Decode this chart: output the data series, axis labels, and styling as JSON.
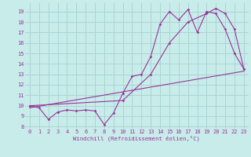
{
  "xlabel": "Windchill (Refroidissement éolien,°C)",
  "bg_color": "#c8ecea",
  "grid_color": "#aad4d2",
  "line_color": "#993399",
  "xlim": [
    -0.5,
    23.5
  ],
  "ylim": [
    7.8,
    19.8
  ],
  "xticks": [
    0,
    1,
    2,
    3,
    4,
    5,
    6,
    7,
    8,
    9,
    10,
    11,
    12,
    13,
    14,
    15,
    16,
    17,
    18,
    19,
    20,
    21,
    22,
    23
  ],
  "yticks": [
    8,
    9,
    10,
    11,
    12,
    13,
    14,
    15,
    16,
    17,
    18,
    19
  ],
  "line1_x": [
    0,
    1,
    2,
    3,
    4,
    5,
    6,
    7,
    8,
    9,
    10,
    11,
    12,
    13,
    14,
    15,
    16,
    17,
    18,
    19,
    20,
    21,
    22,
    23
  ],
  "line1_y": [
    10.0,
    9.8,
    8.7,
    9.4,
    9.6,
    9.5,
    9.6,
    9.5,
    8.2,
    9.3,
    11.2,
    12.8,
    13.0,
    14.7,
    17.8,
    19.0,
    18.2,
    19.2,
    17.0,
    19.0,
    18.8,
    17.3,
    15.0,
    13.5
  ],
  "line2_x": [
    0,
    10,
    13,
    15,
    17,
    19,
    20,
    21,
    22,
    23
  ],
  "line2_y": [
    10.0,
    10.5,
    13.0,
    16.0,
    18.0,
    18.8,
    19.3,
    18.8,
    17.3,
    13.5
  ],
  "line3_x": [
    0,
    23
  ],
  "line3_y": [
    9.8,
    13.3
  ],
  "xlabel_fontsize": 5.2,
  "tick_fontsize": 5.0
}
